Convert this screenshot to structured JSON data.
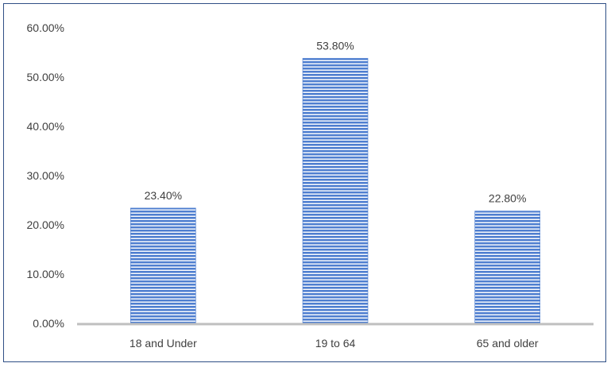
{
  "chart_data": {
    "type": "bar",
    "title": "",
    "xlabel": "",
    "ylabel": "",
    "categories": [
      "18 and Under",
      "19 to 64",
      "65 and older"
    ],
    "values": [
      23.4,
      53.8,
      22.8
    ],
    "data_labels": [
      "23.40%",
      "53.80%",
      "22.80%"
    ],
    "ylim": [
      0,
      60
    ],
    "yticks": [
      0,
      10,
      20,
      30,
      40,
      50,
      60
    ],
    "ytick_labels": [
      "0.00%",
      "10.00%",
      "20.00%",
      "30.00%",
      "40.00%",
      "50.00%",
      "60.00%"
    ],
    "grid": false,
    "legend": "none",
    "colors": {
      "bar_fill": "#4f7fd0",
      "bar_stripe": "#ffffff",
      "axis": "#bfbfbf",
      "frame": "#2f4f86",
      "text": "#404040"
    }
  }
}
